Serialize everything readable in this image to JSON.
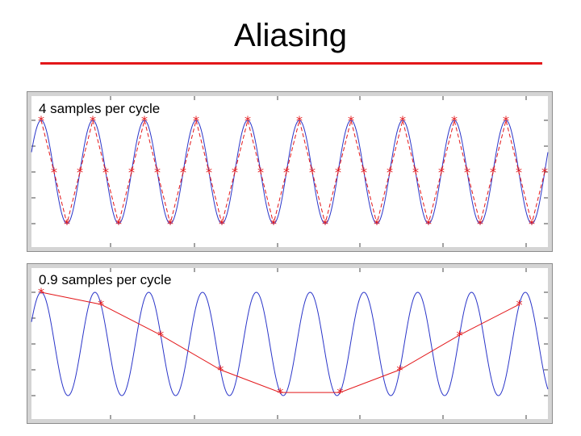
{
  "slide": {
    "title": "Aliasing"
  },
  "colors": {
    "accent": "#e3171a",
    "signal": "#2a35c9",
    "samples": "#e3171a"
  },
  "chart_data": [
    {
      "type": "line",
      "label": "4 samples per cycle",
      "signal": {
        "kind": "cosine",
        "cycles": 10,
        "amplitude": 1
      },
      "samples_per_cycle": 4,
      "series": [
        {
          "name": "signal",
          "style": "solid"
        },
        {
          "name": "samples",
          "style": "dashed-with-star-markers"
        }
      ]
    },
    {
      "type": "line",
      "label": "0.9 samples per cycle",
      "signal": {
        "kind": "cosine",
        "cycles": 9.6,
        "amplitude": 1
      },
      "samples_per_cycle": 0.9,
      "series": [
        {
          "name": "signal",
          "style": "solid"
        },
        {
          "name": "samples",
          "style": "line-with-star-markers"
        }
      ]
    }
  ]
}
